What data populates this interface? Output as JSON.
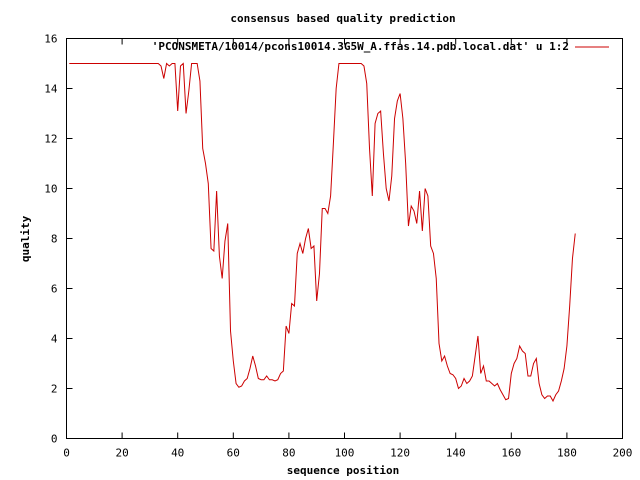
{
  "chart_data": {
    "type": "line",
    "title": "consensus based quality prediction",
    "xlabel": "sequence position",
    "ylabel": "quality",
    "xlim": [
      0,
      200
    ],
    "ylim": [
      0,
      16
    ],
    "xticks": [
      "0",
      "20",
      "40",
      "60",
      "80",
      "100",
      "120",
      "140",
      "160",
      "180",
      "200"
    ],
    "yticks": [
      "0",
      "2",
      "4",
      "6",
      "8",
      "10",
      "12",
      "14",
      "16"
    ],
    "grid": false,
    "legend_position": "top-right",
    "series": [
      {
        "name": "'PCONSMETA/10014/pcons10014.3G5W_A.ffas.14.pdb.local.dat' u 1:2",
        "color": "#cc0000",
        "x": [
          1,
          32,
          33,
          34,
          35,
          36,
          37,
          38,
          39,
          40,
          41,
          42,
          43,
          44,
          45,
          46,
          47,
          48,
          49,
          50,
          51,
          52,
          53,
          54,
          55,
          56,
          57,
          58,
          59,
          60,
          61,
          62,
          63,
          64,
          65,
          66,
          67,
          68,
          69,
          70,
          71,
          72,
          73,
          74,
          75,
          76,
          77,
          78,
          79,
          80,
          81,
          82,
          83,
          84,
          85,
          86,
          87,
          88,
          89,
          90,
          91,
          92,
          93,
          94,
          95,
          96,
          97,
          98,
          99,
          100,
          101,
          102,
          103,
          104,
          105,
          106,
          107,
          108,
          109,
          110,
          111,
          112,
          113,
          114,
          115,
          116,
          117,
          118,
          119,
          120,
          121,
          122,
          123,
          124,
          125,
          126,
          127,
          128,
          129,
          130,
          131,
          132,
          133,
          134,
          135,
          136,
          137,
          138,
          139,
          140,
          141,
          142,
          143,
          144,
          145,
          146,
          147,
          148,
          149,
          150,
          151,
          152,
          153,
          154,
          155,
          156,
          157,
          158,
          159,
          160,
          161,
          162,
          163,
          164,
          165,
          166,
          167,
          168,
          169,
          170,
          171,
          172,
          173,
          174,
          175,
          176,
          177,
          178,
          179,
          180,
          181,
          182,
          183
        ],
        "y": [
          15,
          15,
          15,
          14.9,
          14.4,
          15,
          14.9,
          15,
          15,
          13.1,
          14.9,
          15,
          13,
          13.9,
          15,
          15,
          15,
          14.3,
          11.6,
          11,
          10.2,
          7.6,
          7.5,
          9.9,
          7.3,
          6.4,
          7.9,
          8.6,
          4.3,
          3.1,
          2.2,
          2.05,
          2.1,
          2.3,
          2.4,
          2.8,
          3.3,
          2.9,
          2.4,
          2.35,
          2.35,
          2.5,
          2.35,
          2.35,
          2.3,
          2.35,
          2.6,
          2.7,
          4.5,
          4.2,
          5.4,
          5.3,
          7.4,
          7.8,
          7.4,
          8,
          8.4,
          7.6,
          7.7,
          5.5,
          6.6,
          9.2,
          9.2,
          9,
          9.7,
          11.8,
          14,
          15,
          15,
          15,
          15,
          15,
          15,
          15,
          15,
          15,
          14.9,
          14.2,
          11.6,
          9.7,
          12.6,
          13,
          13.1,
          11.4,
          10,
          9.5,
          10.5,
          12.8,
          13.5,
          13.8,
          12.8,
          11,
          8.5,
          9.3,
          9.1,
          8.6,
          9.9,
          8.3,
          10,
          9.7,
          7.7,
          7.4,
          6.4,
          3.8,
          3.1,
          3.3,
          2.9,
          2.6,
          2.55,
          2.4,
          2.0,
          2.1,
          2.4,
          2.2,
          2.3,
          2.5,
          3.3,
          4.1,
          2.6,
          2.9,
          2.3,
          2.3,
          2.2,
          2.1,
          2.2,
          1.95,
          1.75,
          1.55,
          1.6,
          2.6,
          3,
          3.2,
          3.7,
          3.5,
          3.4,
          2.5,
          2.5,
          3,
          3.2,
          2.2,
          1.75,
          1.6,
          1.7,
          1.7,
          1.5,
          1.75,
          1.9,
          2.3,
          2.8,
          3.7,
          5.3,
          7.2,
          8.2
        ]
      }
    ]
  }
}
